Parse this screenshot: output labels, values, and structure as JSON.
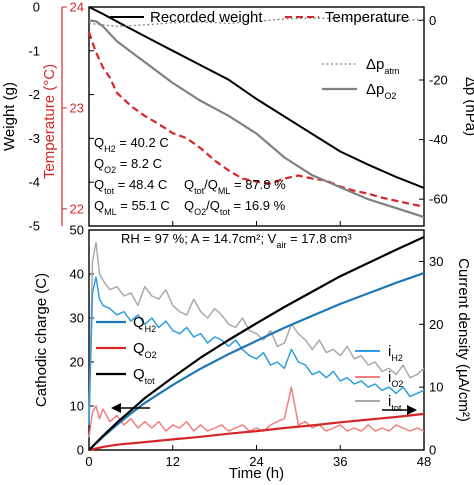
{
  "chart_data": [
    {
      "type": "line",
      "panel": "top",
      "xlim": [
        0,
        48
      ],
      "axes": {
        "weight": {
          "label": "Weight (g)",
          "ylim": [
            -5,
            0
          ],
          "ticks": [
            0,
            -1,
            -2,
            -3,
            -4,
            -5
          ],
          "tick_labels": [
            "0",
            "-1",
            "-2",
            "-3",
            "-4",
            "-5"
          ]
        },
        "temperature": {
          "label": "Temperature (°C)",
          "ylim": [
            21.83,
            24
          ],
          "ticks": [
            24,
            23,
            22
          ],
          "tick_labels": [
            "24",
            "23",
            "22"
          ],
          "color": "#d62728"
        },
        "pressure": {
          "label": "Δp (hPa)",
          "ylim": [
            -69,
            4.5
          ],
          "ticks": [
            0,
            -20,
            -40,
            -60
          ],
          "tick_labels": [
            "0",
            "-20",
            "-40",
            "-60"
          ]
        }
      },
      "legend": {
        "placement": "top",
        "items": [
          {
            "key": "weight",
            "text": "Recorded weight"
          },
          {
            "key": "temperature",
            "text": "Temperature"
          }
        ]
      },
      "side_legend": [
        {
          "key": "dp_atm",
          "main": "Δp",
          "sub": "atm"
        },
        {
          "key": "dp_o2",
          "main": "Δp",
          "sub": "O2"
        }
      ],
      "annotations": [
        {
          "main": "Q",
          "sub": "H2",
          "rest": " = 40.2 C"
        },
        {
          "main": "Q",
          "sub": "O2",
          "rest": " = 8.2 C"
        },
        {
          "main": "Q",
          "sub": "tot",
          "rest": " = 48.4 C"
        },
        {
          "main": "Q",
          "sub": "tot",
          "rest": "/Q",
          "sub2": "ML",
          "rest2": " = 87.8 %"
        },
        {
          "main": "Q",
          "sub": "ML",
          "rest": " = 55.1 C"
        },
        {
          "main": "Q",
          "sub": "O2",
          "rest": "/Q",
          "sub2": "tot",
          "rest2": " = 16.9 %"
        }
      ],
      "series": [
        {
          "key": "weight",
          "name": "Recorded weight",
          "axis": "weight",
          "color": "#000000",
          "style": "solid",
          "x": [
            0,
            2,
            4,
            6,
            8,
            12,
            16,
            20,
            24,
            28,
            32,
            36,
            40,
            44,
            48
          ],
          "y": [
            0,
            -0.16,
            -0.33,
            -0.5,
            -0.67,
            -1.0,
            -1.33,
            -1.66,
            -2.1,
            -2.5,
            -2.9,
            -3.3,
            -3.6,
            -3.88,
            -4.13
          ]
        },
        {
          "key": "temperature",
          "name": "Temperature",
          "axis": "temperature",
          "color": "#d62728",
          "style": "dashed",
          "x": [
            0,
            1,
            2,
            3,
            4,
            6,
            8,
            10,
            12,
            14,
            16,
            18,
            20,
            22,
            24,
            26,
            28,
            30,
            32,
            34,
            36,
            38,
            40,
            42,
            44,
            46,
            48
          ],
          "y": [
            23.75,
            23.55,
            23.4,
            23.3,
            23.15,
            23.02,
            22.92,
            22.84,
            22.75,
            22.7,
            22.6,
            22.48,
            22.38,
            22.3,
            22.27,
            22.25,
            22.3,
            22.33,
            22.3,
            22.28,
            22.22,
            22.18,
            22.15,
            22.11,
            22.08,
            22.05,
            22.02
          ]
        },
        {
          "key": "dp_atm",
          "name": "Δp atm",
          "axis": "pressure",
          "color": "#808080",
          "style": "dotted",
          "x": [
            0,
            4,
            8,
            12,
            16,
            20,
            24,
            28,
            32,
            36,
            40,
            44,
            48
          ],
          "y": [
            -1,
            -2,
            -1.5,
            -0.8,
            -0.5,
            -1,
            -0.3,
            0.5,
            0.8,
            0.6,
            0.3,
            0.1,
            0.2
          ]
        },
        {
          "key": "dp_o2",
          "name": "Δp O2",
          "axis": "pressure",
          "color": "#808080",
          "style": "solid",
          "x": [
            0,
            1,
            2,
            4,
            8,
            12,
            16,
            20,
            24,
            28,
            32,
            36,
            40,
            44,
            48
          ],
          "y": [
            0,
            -0.3,
            -2,
            -7,
            -14,
            -21,
            -27,
            -32,
            -38,
            -46,
            -52,
            -56,
            -60,
            -63,
            -66
          ]
        }
      ]
    },
    {
      "type": "line",
      "panel": "bottom",
      "xlabel": "Time (h)",
      "xlim": [
        0,
        48
      ],
      "xticks": [
        0,
        12,
        24,
        36,
        48
      ],
      "xtick_labels": [
        "0",
        "12",
        "24",
        "36",
        "48"
      ],
      "axes": {
        "charge": {
          "label": "Cathodic charge (C)",
          "ylim": [
            0,
            50
          ],
          "ticks": [
            0,
            10,
            20,
            30,
            40,
            50
          ],
          "tick_labels": [
            "0",
            "10",
            "20",
            "30",
            "40",
            "50"
          ]
        },
        "current": {
          "label": "Current density (µA/cm²)",
          "ylim": [
            0,
            35
          ],
          "ticks": [
            0,
            10,
            20,
            30
          ],
          "tick_labels": [
            "0",
            "10",
            "20",
            "30"
          ]
        }
      },
      "header": "RH = 97 %; A = 14.7cm²; V",
      "header_sub": "air",
      "header_tail": " = 17.8 cm³",
      "legend_left": [
        {
          "key": "q_h2",
          "main": "Q",
          "sub": "H2"
        },
        {
          "key": "q_o2",
          "main": "Q",
          "sub": "O2"
        },
        {
          "key": "q_tot",
          "main": "Q",
          "sub": "tot"
        }
      ],
      "legend_right": [
        {
          "key": "i_h2",
          "main": "i",
          "sub": "H2"
        },
        {
          "key": "i_o2",
          "main": "i",
          "sub": "O2"
        },
        {
          "key": "i_tot",
          "main": "i",
          "sub": "tot"
        }
      ],
      "series": [
        {
          "key": "q_tot",
          "name": "Q tot",
          "axis": "charge",
          "color": "#000000",
          "x": [
            0,
            2,
            4,
            6,
            8,
            12,
            16,
            20,
            24,
            28,
            32,
            36,
            40,
            44,
            48
          ],
          "y": [
            0,
            3.2,
            6.2,
            9,
            11.8,
            16.5,
            21,
            25,
            28.8,
            32.5,
            36,
            39.5,
            42.5,
            45.5,
            48.4
          ]
        },
        {
          "key": "q_h2",
          "name": "Q H2",
          "axis": "charge",
          "color": "#1f77b4",
          "x": [
            0,
            2,
            4,
            6,
            8,
            12,
            16,
            20,
            24,
            28,
            32,
            36,
            40,
            44,
            48
          ],
          "y": [
            0,
            3.0,
            5.7,
            8.3,
            10.7,
            14.8,
            18.5,
            21.8,
            24.8,
            27.8,
            30.5,
            33.2,
            35.6,
            38,
            40.2
          ]
        },
        {
          "key": "q_o2",
          "name": "Q O2",
          "axis": "charge",
          "color": "#d62728",
          "x": [
            0,
            2,
            4,
            8,
            12,
            16,
            20,
            24,
            28,
            32,
            36,
            40,
            44,
            48
          ],
          "y": [
            0,
            0.7,
            1.2,
            1.8,
            2.4,
            3.0,
            3.7,
            4.3,
            5.0,
            5.6,
            6.3,
            6.9,
            7.5,
            8.2
          ]
        },
        {
          "key": "i_tot",
          "name": "i tot",
          "axis": "current",
          "color": "#aaaaaa",
          "x": [
            0,
            0.5,
            1,
            1.5,
            2,
            3,
            4,
            5,
            6,
            7,
            8,
            9,
            10,
            11,
            12,
            13,
            14,
            15,
            16,
            17,
            18,
            19,
            20,
            21,
            22,
            23,
            24,
            25,
            26,
            27,
            28,
            29,
            30,
            31,
            32,
            33,
            34,
            35,
            36,
            37,
            38,
            39,
            40,
            41,
            42,
            43,
            44,
            45,
            46,
            47,
            48
          ],
          "y": [
            5,
            30,
            33,
            28,
            27,
            25.5,
            26,
            24.5,
            25,
            23,
            26,
            24.5,
            24,
            25.5,
            23,
            22,
            21.5,
            24,
            22,
            21,
            22.5,
            21.5,
            20,
            19.5,
            21,
            19,
            18.5,
            17.5,
            19,
            16.5,
            17,
            20,
            18.5,
            17.5,
            16,
            17.5,
            15.5,
            16,
            15,
            16.5,
            14.5,
            15,
            13.5,
            14,
            12.5,
            13,
            12,
            13.5,
            11.5,
            12,
            13
          ]
        },
        {
          "key": "i_h2",
          "name": "i H2",
          "axis": "current",
          "color": "#2e9ee0",
          "x": [
            0,
            0.5,
            1,
            1.5,
            2,
            3,
            4,
            5,
            6,
            7,
            8,
            9,
            10,
            11,
            12,
            13,
            14,
            15,
            16,
            17,
            18,
            19,
            20,
            21,
            22,
            23,
            24,
            25,
            26,
            27,
            28,
            29,
            30,
            31,
            32,
            33,
            34,
            35,
            36,
            37,
            38,
            39,
            40,
            41,
            42,
            43,
            44,
            45,
            46,
            47,
            48
          ],
          "y": [
            4,
            25,
            27.5,
            24,
            23,
            22.5,
            21.5,
            22,
            20.5,
            21.5,
            20,
            21,
            19.5,
            20.5,
            19,
            18.5,
            19.5,
            18,
            18.5,
            17,
            18,
            17.5,
            16.5,
            17.5,
            16,
            15,
            14.5,
            15.5,
            13.5,
            14,
            13,
            16,
            14,
            13.5,
            12,
            12.5,
            11.5,
            12.5,
            11,
            11.5,
            10.5,
            11,
            10,
            10.5,
            9.5,
            10,
            9,
            10,
            8.5,
            9,
            9.5
          ]
        },
        {
          "key": "i_o2",
          "name": "i O2",
          "axis": "current",
          "color": "#f08080",
          "x": [
            0,
            0.5,
            1,
            1.5,
            2,
            3,
            4,
            5,
            6,
            7,
            8,
            9,
            10,
            11,
            12,
            13,
            14,
            15,
            16,
            17,
            18,
            19,
            20,
            21,
            22,
            23,
            24,
            25,
            26,
            27,
            28,
            29,
            30,
            31,
            32,
            33,
            34,
            35,
            36,
            37,
            38,
            39,
            40,
            41,
            42,
            43,
            44,
            45,
            46,
            47,
            48
          ],
          "y": [
            2,
            6,
            7,
            5,
            6.5,
            4.5,
            5.5,
            4,
            5,
            3.5,
            4.5,
            3.5,
            4.5,
            3,
            4,
            3.5,
            4.5,
            3,
            4,
            3,
            3.5,
            4,
            3,
            3.5,
            4,
            3,
            3.5,
            3,
            4,
            4.5,
            5,
            10,
            4,
            4.5,
            3.5,
            4,
            3,
            3.5,
            4,
            3,
            3.5,
            3,
            4,
            3,
            3.5,
            3,
            4,
            3.5,
            3,
            3.5,
            3
          ]
        }
      ]
    }
  ]
}
